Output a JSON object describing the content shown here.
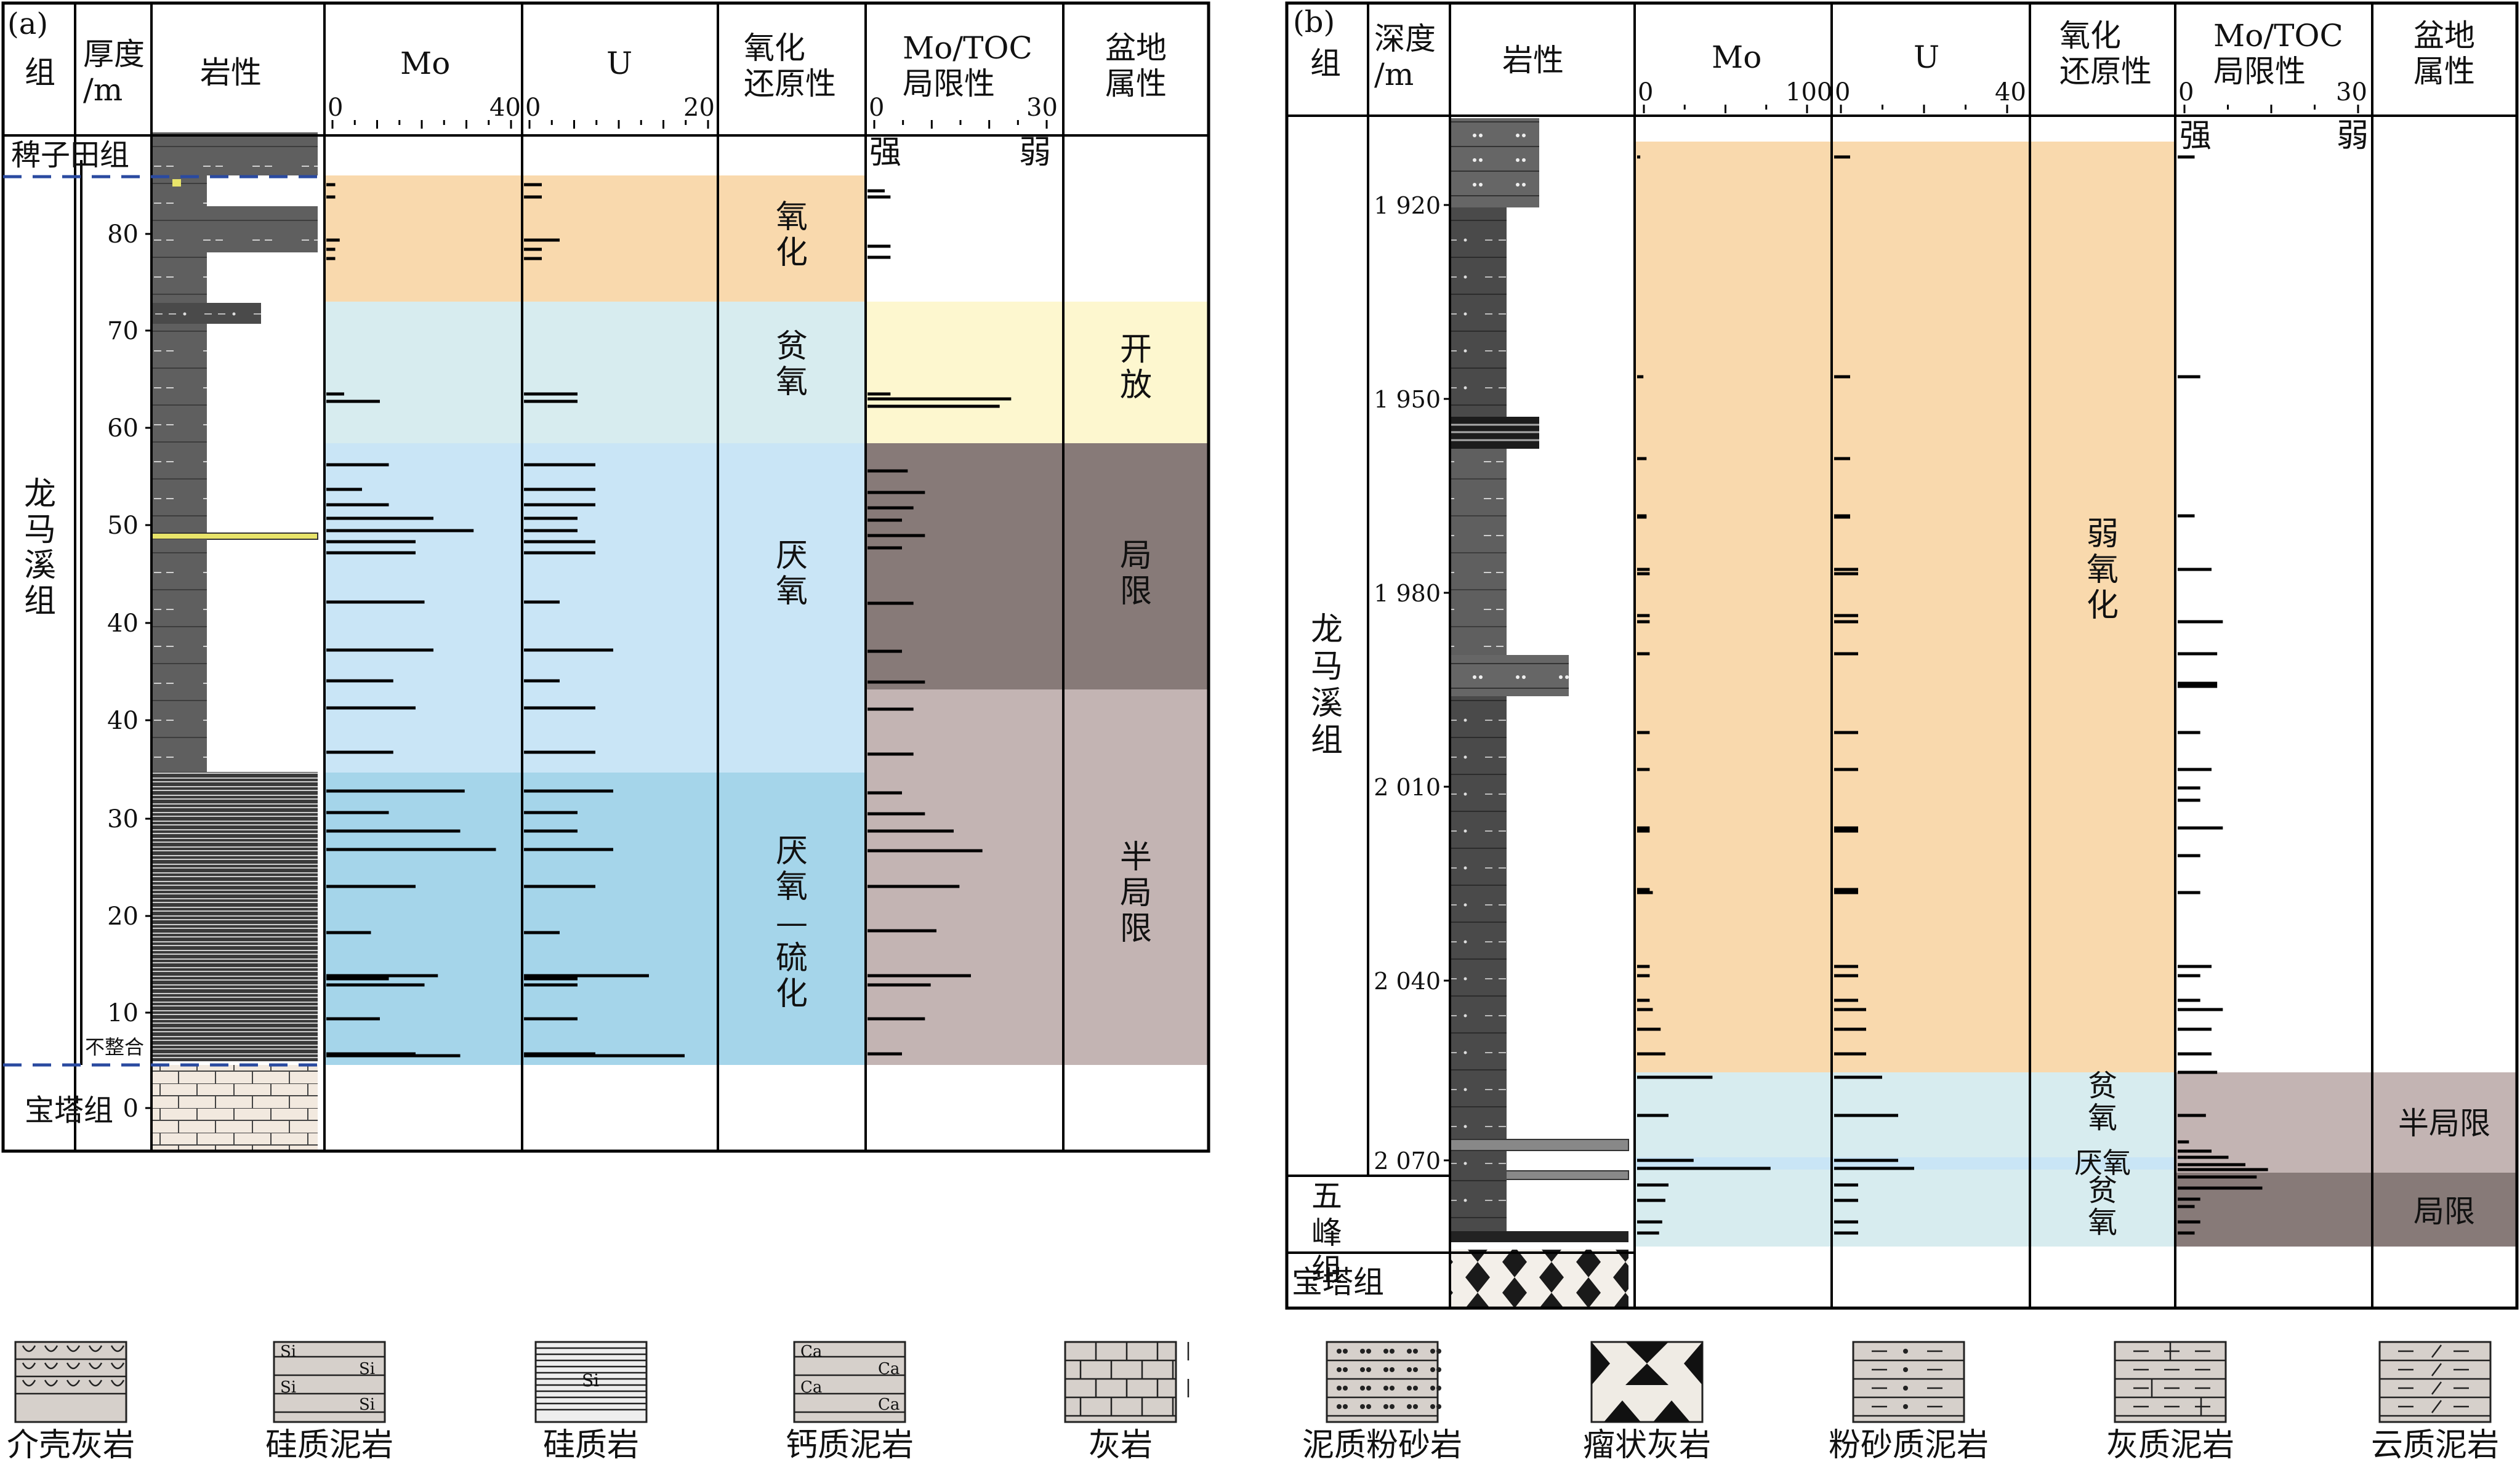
{
  "panel_a": {
    "tag": "(a)",
    "headers": {
      "group": "组",
      "thickness": "厚度\n/m",
      "lithology": "岩性",
      "mo": "Mo",
      "u": "U",
      "redox": "氧化\n还原性",
      "mo_toc": "Mo/TOC\n局限性",
      "basin": "盆地\n属性"
    },
    "mo_axis": {
      "min": "0",
      "max": "40"
    },
    "u_axis": {
      "min": "0",
      "max": "20"
    },
    "mo_toc_axis": {
      "min": "0",
      "max": "30",
      "strong": "强",
      "weak": "弱"
    },
    "formations": {
      "top": "稗子田组",
      "main": "龙马溪组",
      "bottom": "宝塔组"
    },
    "unconformity": "不整合",
    "depth_ticks": [
      "80",
      "70",
      "60",
      "50",
      "40",
      "40",
      "30",
      "20",
      "10",
      "0"
    ],
    "redox_zones": [
      {
        "label": "氧化",
        "color": "#f9d9ad"
      },
      {
        "label": "贫氧",
        "color": "#d7ecef"
      },
      {
        "label": "厌氧",
        "color": "#c9e5f6"
      },
      {
        "label": "厌氧—硫化",
        "color": "#a5d5ea"
      }
    ],
    "basin_zones": [
      {
        "label": "开放",
        "color": "#fdf7cf"
      },
      {
        "label": "局限",
        "color": "#877a78"
      },
      {
        "label": "半局限",
        "color": "#c3b4b3"
      }
    ],
    "mo_values": [
      2,
      2,
      3,
      2,
      2,
      4,
      12,
      14,
      8,
      14,
      24,
      33,
      20,
      20,
      22,
      24,
      15,
      20,
      15,
      31,
      14,
      30,
      38,
      20,
      10,
      25,
      22,
      12,
      20,
      14,
      30
    ],
    "u_values": [
      2,
      2,
      4,
      2,
      2,
      6,
      6,
      8,
      8,
      8,
      6,
      6,
      8,
      8,
      4,
      10,
      4,
      8,
      8,
      10,
      6,
      6,
      10,
      8,
      4,
      14,
      6,
      6,
      8,
      6,
      18
    ],
    "mo_toc_values": [
      3,
      4,
      4,
      4,
      4,
      25,
      23,
      7,
      10,
      8,
      6,
      10,
      6,
      8,
      6,
      10,
      8,
      8,
      6,
      10,
      15,
      20,
      16,
      12,
      18,
      11,
      10,
      6
    ]
  },
  "panel_b": {
    "tag": "(b)",
    "headers": {
      "group": "组",
      "depth": "深度\n/m",
      "lithology": "岩性",
      "mo": "Mo",
      "u": "U",
      "redox": "氧化\n还原性",
      "mo_toc": "Mo/TOC\n局限性",
      "basin": "盆地\n属性"
    },
    "mo_axis": {
      "min": "0",
      "max": "100"
    },
    "u_axis": {
      "min": "0",
      "max": "40"
    },
    "mo_toc_axis": {
      "min": "0",
      "max": "30",
      "strong": "强",
      "weak": "弱"
    },
    "formations": {
      "main": "龙马溪组",
      "wufeng": "五峰组",
      "bottom": "宝塔组"
    },
    "depth_ticks": [
      "1 920",
      "1 950",
      "1 980",
      "2 010",
      "2 040",
      "2 070"
    ],
    "redox_zones": [
      {
        "label": "弱氧化",
        "color": "#f9d9ad"
      },
      {
        "label": "贫氧",
        "color": "#d7ecef"
      },
      {
        "label": "厌氧",
        "color": "#c9e5f6"
      },
      {
        "label": "贫氧",
        "color": "#d7ecef"
      }
    ],
    "basin_zones": [
      {
        "label": "半局限",
        "color": "#c3b4b3"
      },
      {
        "label": "局限",
        "color": "#877a78"
      }
    ],
    "mo_values": [
      2,
      4,
      6,
      6,
      6,
      8,
      8,
      8,
      8,
      8,
      8,
      8,
      8,
      8,
      8,
      10,
      8,
      8,
      8,
      10,
      15,
      18,
      20,
      48,
      36,
      45,
      85,
      20,
      18,
      16,
      14
    ],
    "u_values": [
      4,
      4,
      4,
      4,
      4,
      6,
      6,
      6,
      6,
      6,
      6,
      6,
      6,
      6,
      6,
      6,
      6,
      6,
      6,
      8,
      8,
      8,
      16,
      12,
      16,
      20,
      8,
      6,
      6,
      6,
      6
    ],
    "mo_toc_values": [
      3,
      4,
      3,
      6,
      8,
      7,
      7,
      7,
      4,
      6,
      4,
      4,
      8,
      4,
      4,
      6,
      4,
      4,
      8,
      6,
      6,
      7,
      5,
      2,
      6,
      9,
      12,
      16,
      14,
      15,
      4,
      3,
      4,
      3
    ]
  },
  "legend": [
    {
      "label": "介壳灰岩",
      "pattern": "shell-limestone"
    },
    {
      "label": "硅质泥岩",
      "pattern": "siliceous-mudstone"
    },
    {
      "label": "硅质岩",
      "pattern": "siliceous-rock"
    },
    {
      "label": "钙质泥岩",
      "pattern": "calcareous-mudstone"
    },
    {
      "label": "灰岩",
      "pattern": "limestone"
    },
    {
      "label": "泥质粉砂岩",
      "pattern": "argillaceous-siltstone"
    },
    {
      "label": "瘤状灰岩",
      "pattern": "nodular-limestone"
    },
    {
      "label": "粉砂质泥岩",
      "pattern": "silty-mudstone"
    },
    {
      "label": "灰质泥岩",
      "pattern": "lime-mudstone"
    },
    {
      "label": "云质泥岩",
      "pattern": "dolomitic-mudstone"
    }
  ],
  "legend_symbols": {
    "si": "Si",
    "ca": "Ca"
  }
}
